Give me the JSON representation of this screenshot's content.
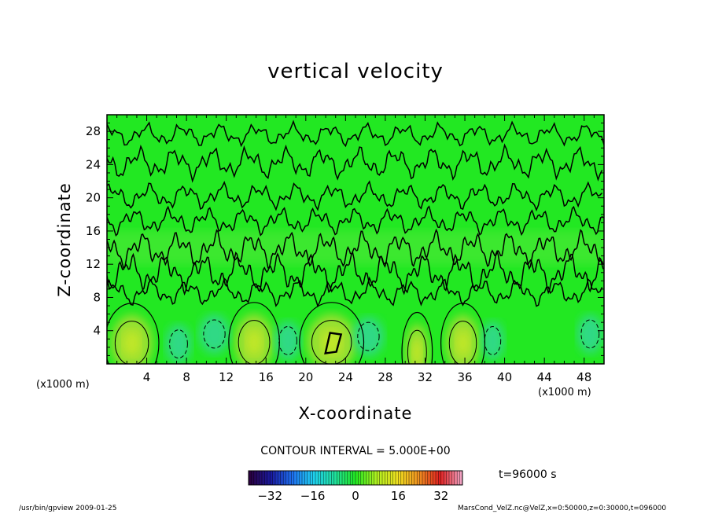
{
  "chart_data": {
    "type": "heatmap",
    "title": "vertical velocity",
    "xlabel": "X-coordinate",
    "ylabel": "Z-coordinate",
    "x_unit_label": "(x1000 m)",
    "xlim": [
      0,
      50
    ],
    "ylim": [
      0,
      30
    ],
    "x_ticks": [
      4,
      8,
      12,
      16,
      20,
      24,
      28,
      32,
      36,
      40,
      44,
      48
    ],
    "y_ticks": [
      4,
      8,
      12,
      16,
      20,
      24,
      28
    ],
    "contour_interval_text": "CONTOUR INTERVAL = 5.000E+00",
    "time_text": "t=96000 s",
    "colorbar": {
      "range": [
        -40,
        40
      ],
      "ticks": [
        -32,
        -16,
        0,
        16,
        32
      ],
      "tick_labels": [
        "−32",
        "−16",
        "0",
        "16",
        "32"
      ],
      "colors": [
        "#2a0040",
        "#1a1aa0",
        "#1f6ff0",
        "#1fd0f0",
        "#20e0a0",
        "#22e822",
        "#b0f020",
        "#f0e020",
        "#f09020",
        "#e02020",
        "#f0a0c0"
      ]
    },
    "background_color": "#22e822",
    "features": [
      {
        "x": 2.5,
        "z": 2.5,
        "w": 1.6,
        "kind": "updraft"
      },
      {
        "x": 14.8,
        "z": 2.6,
        "w": 1.5,
        "kind": "updraft"
      },
      {
        "x": 22.6,
        "z": 2.6,
        "w": 1.9,
        "kind": "updraft"
      },
      {
        "x": 31.2,
        "z": 1.4,
        "w": 0.9,
        "kind": "updraft"
      },
      {
        "x": 35.8,
        "z": 2.5,
        "w": 1.3,
        "kind": "updraft"
      },
      {
        "x": 7.2,
        "z": 2.4,
        "w": 1.0,
        "kind": "downdraft"
      },
      {
        "x": 10.8,
        "z": 3.6,
        "w": 1.2,
        "kind": "downdraft"
      },
      {
        "x": 18.2,
        "z": 2.8,
        "w": 1.0,
        "kind": "downdraft"
      },
      {
        "x": 26.3,
        "z": 3.3,
        "w": 1.2,
        "kind": "downdraft"
      },
      {
        "x": 38.8,
        "z": 2.8,
        "w": 0.9,
        "kind": "downdraft"
      },
      {
        "x": 48.6,
        "z": 3.6,
        "w": 1.0,
        "kind": "downdraft"
      }
    ]
  },
  "footer": {
    "left": "/usr/bin/gpview  2009-01-25",
    "right": "MarsCond_VelZ.nc@VelZ,x=0:50000,z=0:30000,t=096000"
  }
}
